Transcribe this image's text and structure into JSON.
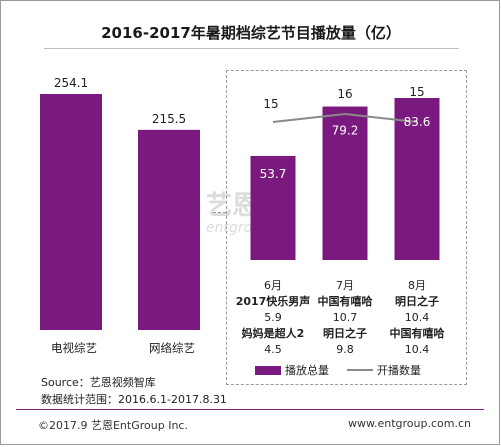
{
  "title": "2016-2017年暑期档综艺节目播放量（亿）",
  "colors": {
    "bar": "#7b1a7e",
    "line": "#8a8a8a",
    "accent": "#7b1f80"
  },
  "chart_data": [
    {
      "type": "bar",
      "categories": [
        "电视综艺",
        "网络综艺"
      ],
      "values": [
        254.1,
        215.5
      ],
      "value_labels": [
        "254.1",
        "215.5"
      ]
    },
    {
      "type": "bar+line",
      "categories": [
        "6月",
        "7月",
        "8月"
      ],
      "series": [
        {
          "name": "播放总量",
          "type": "bar",
          "values": [
            53.7,
            79.2,
            83.6
          ],
          "labels": [
            "53.7",
            "79.2",
            "83.6"
          ]
        },
        {
          "name": "开播数量",
          "type": "line",
          "values": [
            15,
            16,
            15
          ],
          "labels": [
            "15",
            "16",
            "15"
          ]
        }
      ],
      "legend": "bottom",
      "table": [
        {
          "month": "6月",
          "top1": "2017快乐男声",
          "top1_val": "5.9",
          "top2": "妈妈是超人2",
          "top2_val": "4.5"
        },
        {
          "month": "7月",
          "top1": "中国有嘻哈",
          "top1_val": "10.7",
          "top2": "明日之子",
          "top2_val": "9.8"
        },
        {
          "month": "8月",
          "top1": "明日之子",
          "top1_val": "10.4",
          "top2": "中国有嘻哈",
          "top2_val": "10.4"
        }
      ]
    }
  ],
  "source_line": "Source：艺恩视频智库",
  "range_line": "数据统计范围：2016.6.1-2017.8.31",
  "footer_left": "©2017.9 艺恩EntGroup Inc.",
  "footer_right": "www.entgroup.com.cn",
  "watermark": {
    "cn": "艺恩",
    "en": "entgroup"
  }
}
